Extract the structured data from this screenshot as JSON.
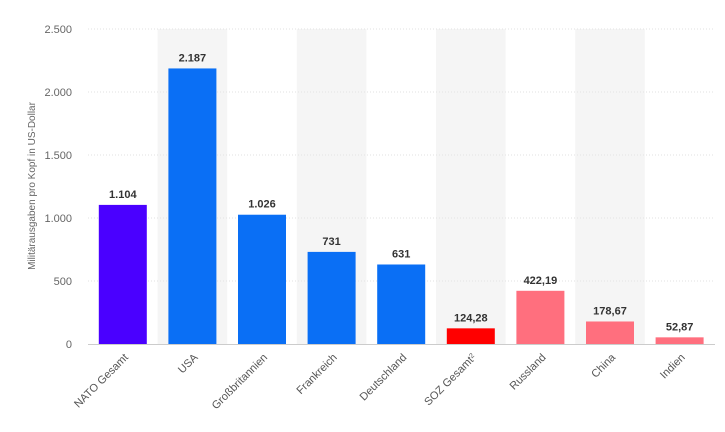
{
  "chart_data": {
    "type": "bar",
    "ylabel": "Militärausgaben pro Kopf in US-Dollar",
    "ylim": [
      0,
      2500
    ],
    "yticks": [
      0,
      500,
      1000,
      1500,
      2000,
      2500
    ],
    "ytick_labels": [
      "0",
      "500",
      "1.000",
      "1.500",
      "2.000",
      "2.500"
    ],
    "categories": [
      "NATO Gesamt",
      "USA",
      "Großbritannien",
      "Frankreich",
      "Deutschland",
      "SOZ Gesamt",
      "Russland",
      "China",
      "Indien"
    ],
    "category_superscripts": [
      "",
      "",
      "",
      "",
      "",
      "2",
      "",
      "",
      ""
    ],
    "values": [
      1104,
      2187,
      1026,
      731,
      631,
      124.28,
      422.19,
      178.67,
      52.87
    ],
    "value_labels": [
      "1.104",
      "2.187",
      "1.026",
      "731",
      "631",
      "124,28",
      "422,19",
      "178,67",
      "52,87"
    ],
    "bar_colors": [
      "#4a00ff",
      "#0a6ff5",
      "#0a6ff5",
      "#0a6ff5",
      "#0a6ff5",
      "#ff0000",
      "#ff6f7e",
      "#ff6f7e",
      "#ff6f7e"
    ],
    "grid": true,
    "band_color": "#f5f5f5",
    "grid_color": "#e2e2e2"
  }
}
